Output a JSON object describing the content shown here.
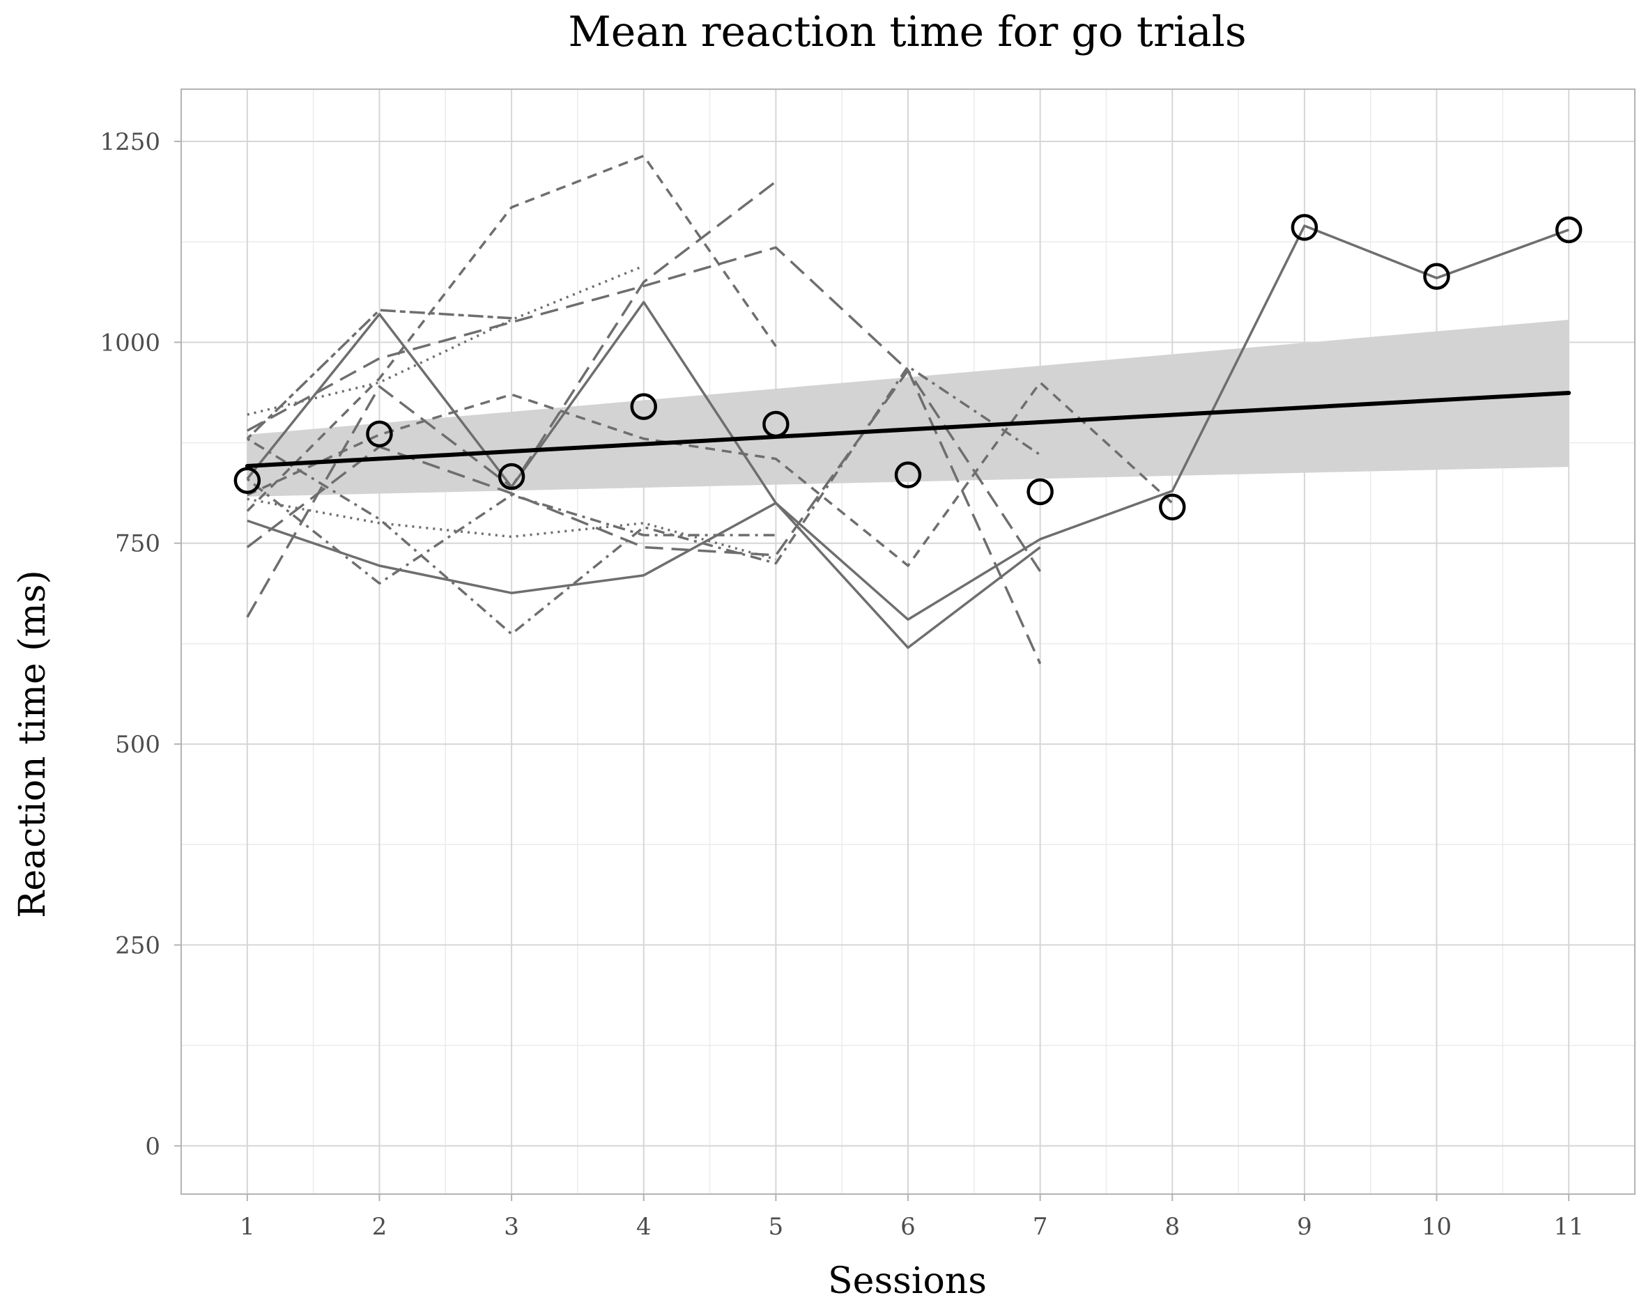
{
  "chart_data": {
    "type": "line",
    "title": "Mean reaction time for go trials",
    "xlabel": "Sessions",
    "ylabel": "Reaction time (ms)",
    "x_ticks": [
      "1",
      "2",
      "3",
      "4",
      "5",
      "6",
      "7",
      "8",
      "9",
      "10",
      "11"
    ],
    "y_ticks": [
      "0",
      "250",
      "500",
      "750",
      "1000",
      "1250"
    ],
    "xlim": [
      0.5,
      11.5
    ],
    "ylim": [
      -60,
      1315
    ],
    "grid": true,
    "legend": "none",
    "colors": {
      "subjects": "#6e6e6e",
      "trend": "#000000",
      "ribbon": "#d3d3d3",
      "points": "#000000"
    },
    "subjects": [
      {
        "dash": "solid",
        "x": [
          1,
          2,
          3,
          4,
          5,
          6,
          7,
          8,
          9,
          10,
          11
        ],
        "y": [
          830,
          1035,
          820,
          1050,
          800,
          655,
          755,
          815,
          1145,
          1080,
          1140
        ]
      },
      {
        "dash": "solid",
        "x": [
          1,
          2,
          3,
          4,
          5,
          6,
          7
        ],
        "y": [
          778,
          722,
          688,
          710,
          800,
          620,
          745
        ]
      },
      {
        "dash": "longdash",
        "x": [
          1,
          2,
          3,
          4,
          5,
          6,
          7
        ],
        "y": [
          890,
          980,
          1025,
          1070,
          1118,
          965,
          600
        ]
      },
      {
        "dash": "longdash",
        "x": [
          1,
          2,
          3,
          4,
          5
        ],
        "y": [
          658,
          945,
          820,
          1075,
          1200
        ]
      },
      {
        "dash": "longdash",
        "x": [
          1,
          2,
          3,
          4,
          5,
          6,
          7
        ],
        "y": [
          745,
          870,
          812,
          745,
          735,
          965,
          715
        ]
      },
      {
        "dash": "dashed",
        "x": [
          1,
          2,
          3,
          4,
          5
        ],
        "y": [
          790,
          955,
          1168,
          1232,
          995
        ]
      },
      {
        "dash": "dashed",
        "x": [
          1,
          2,
          3,
          4,
          5,
          6,
          7,
          8
        ],
        "y": [
          810,
          885,
          935,
          880,
          855,
          722,
          950,
          800
        ]
      },
      {
        "dash": "dotdash",
        "x": [
          1,
          2,
          3,
          4,
          5
        ],
        "y": [
          830,
          700,
          810,
          760,
          760
        ]
      },
      {
        "dash": "dotdash",
        "x": [
          1,
          2,
          3,
          4,
          5,
          6,
          7
        ],
        "y": [
          880,
          780,
          637,
          770,
          725,
          970,
          860
        ]
      },
      {
        "dash": "dotted",
        "x": [
          1,
          2,
          3,
          4
        ],
        "y": [
          910,
          950,
          1028,
          1095
        ]
      },
      {
        "dash": "dotted",
        "x": [
          1,
          2,
          3,
          4,
          5
        ],
        "y": [
          805,
          775,
          758,
          775,
          730
        ]
      },
      {
        "dash": "twodash",
        "x": [
          1,
          2,
          3
        ],
        "y": [
          880,
          1040,
          1030
        ]
      }
    ],
    "means": {
      "x": [
        1,
        2,
        3,
        4,
        5,
        6,
        7,
        8,
        9,
        10,
        11
      ],
      "y": [
        828,
        886,
        833,
        920,
        898,
        835,
        814,
        795,
        1143,
        1082,
        1140
      ]
    },
    "trend": {
      "x": [
        1,
        11
      ],
      "y": [
        846,
        937
      ],
      "ci_lower": [
        808,
        845
      ],
      "ci_upper": [
        885,
        1028
      ]
    }
  }
}
